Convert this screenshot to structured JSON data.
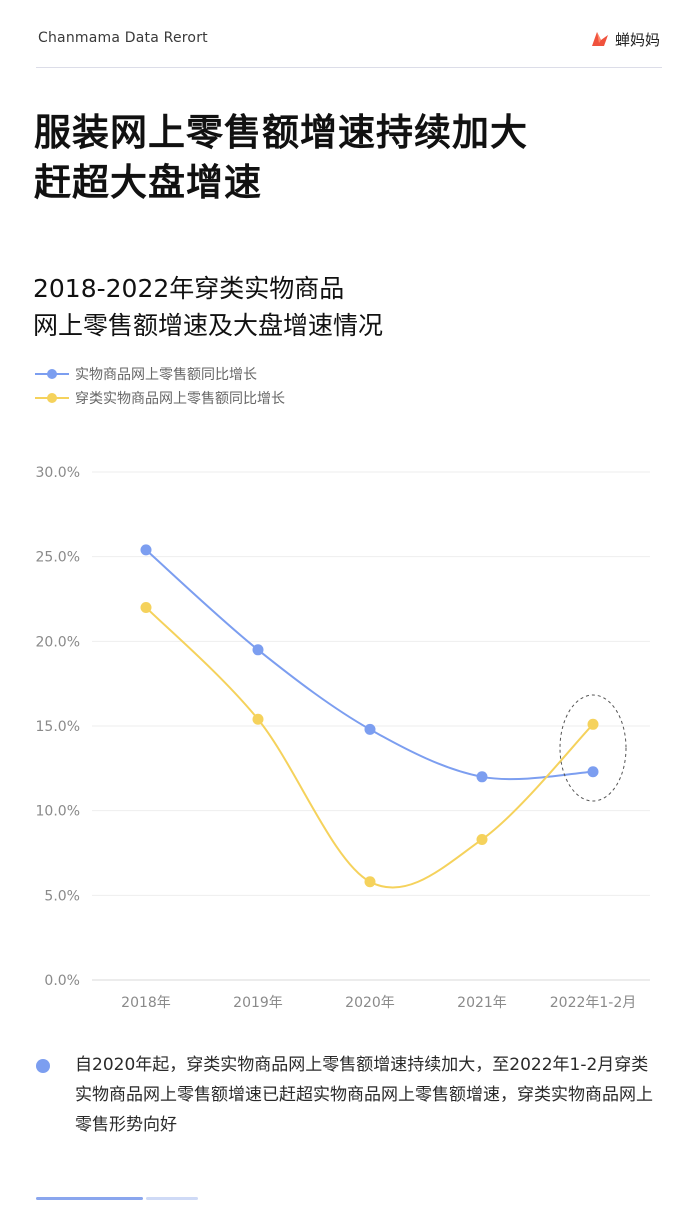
{
  "header": {
    "report_label": "Chanmama Data Rerort",
    "brand_name": "蝉妈妈"
  },
  "headline": {
    "line1": "服装网上零售额增速持续加大",
    "line2": "赶超大盘增速"
  },
  "chart_data": {
    "type": "line",
    "title_lines": [
      "2018-2022年穿类实物商品",
      "网上零售额增速及大盘增速情况"
    ],
    "categories": [
      "2018年",
      "2019年",
      "2020年",
      "2021年",
      "2022年1-2月"
    ],
    "series": [
      {
        "name": "实物商品网上零售额同比增长",
        "color": "#7c9ef0",
        "values": [
          25.4,
          19.5,
          14.8,
          12.0,
          12.3
        ]
      },
      {
        "name": "穿类实物商品网上零售额同比增长",
        "color": "#f5d25c",
        "values": [
          22.0,
          15.4,
          5.8,
          8.3,
          15.1
        ]
      }
    ],
    "y_ticks": [
      "0.0%",
      "5.0%",
      "10.0%",
      "15.0%",
      "20.0%",
      "25.0%",
      "30.0%"
    ],
    "ylim": [
      0,
      30
    ],
    "grid": true,
    "legend_position": "top-left",
    "highlight_category": "2022年1-2月"
  },
  "note": {
    "text": "自2020年起，穿类实物商品网上零售额增速持续加大，至2022年1-2月穿类实物商品网上零售额增速已赶超实物商品网上零售额增速，穿类实物商品网上零售形势向好"
  }
}
